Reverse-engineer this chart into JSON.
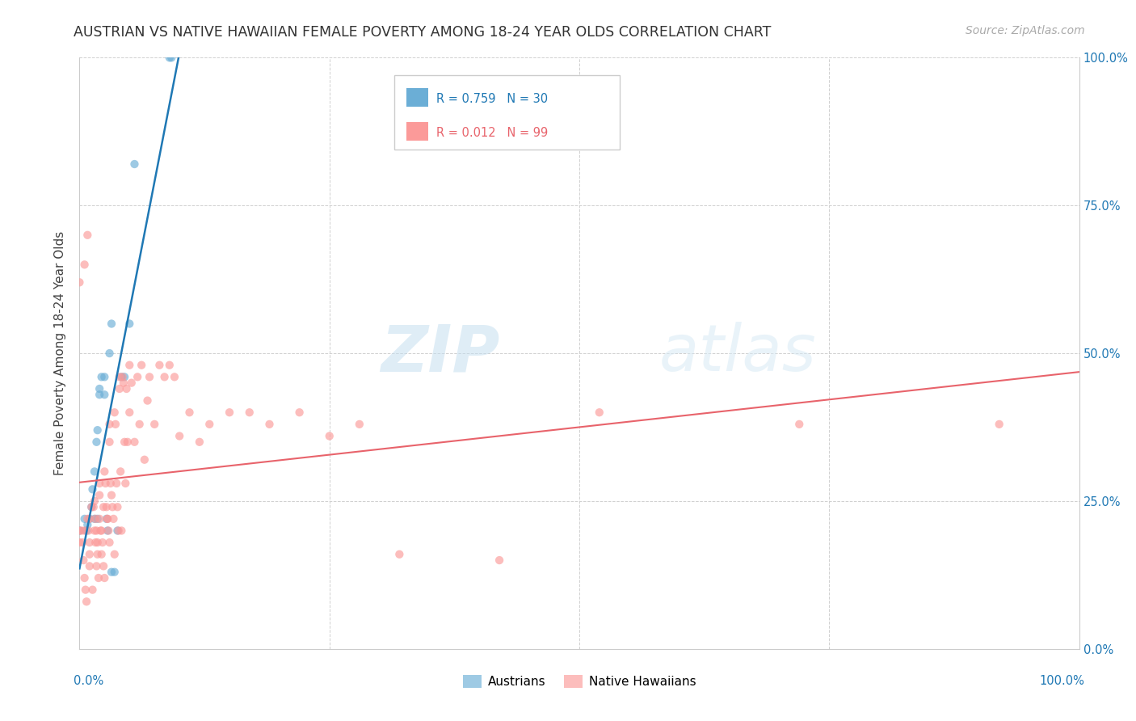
{
  "title": "AUSTRIAN VS NATIVE HAWAIIAN FEMALE POVERTY AMONG 18-24 YEAR OLDS CORRELATION CHART",
  "source": "Source: ZipAtlas.com",
  "ylabel": "Female Poverty Among 18-24 Year Olds",
  "watermark_zip": "ZIP",
  "watermark_atlas": "atlas",
  "austrians_x": [
    0.0,
    0.005,
    0.007,
    0.008,
    0.01,
    0.012,
    0.013,
    0.015,
    0.015,
    0.017,
    0.018,
    0.018,
    0.02,
    0.02,
    0.022,
    0.025,
    0.025,
    0.027,
    0.028,
    0.03,
    0.032,
    0.032,
    0.035,
    0.038,
    0.042,
    0.045,
    0.05,
    0.055,
    0.09,
    0.092
  ],
  "austrians_y": [
    0.2,
    0.22,
    0.2,
    0.21,
    0.22,
    0.24,
    0.27,
    0.3,
    0.22,
    0.35,
    0.37,
    0.22,
    0.43,
    0.44,
    0.46,
    0.43,
    0.46,
    0.22,
    0.2,
    0.5,
    0.55,
    0.13,
    0.13,
    0.2,
    0.46,
    0.46,
    0.55,
    0.82,
    1.0,
    1.0
  ],
  "hawaiians_x": [
    0.0,
    0.0,
    0.0,
    0.002,
    0.003,
    0.004,
    0.005,
    0.005,
    0.005,
    0.006,
    0.007,
    0.008,
    0.008,
    0.009,
    0.01,
    0.01,
    0.01,
    0.01,
    0.012,
    0.013,
    0.014,
    0.015,
    0.015,
    0.016,
    0.016,
    0.017,
    0.017,
    0.018,
    0.018,
    0.019,
    0.02,
    0.02,
    0.02,
    0.021,
    0.022,
    0.022,
    0.023,
    0.024,
    0.024,
    0.025,
    0.025,
    0.026,
    0.027,
    0.028,
    0.028,
    0.029,
    0.03,
    0.03,
    0.03,
    0.031,
    0.032,
    0.033,
    0.034,
    0.035,
    0.035,
    0.036,
    0.037,
    0.038,
    0.039,
    0.04,
    0.04,
    0.041,
    0.042,
    0.043,
    0.044,
    0.045,
    0.046,
    0.047,
    0.048,
    0.05,
    0.05,
    0.052,
    0.055,
    0.058,
    0.06,
    0.062,
    0.065,
    0.068,
    0.07,
    0.075,
    0.08,
    0.085,
    0.09,
    0.095,
    0.1,
    0.11,
    0.12,
    0.13,
    0.15,
    0.17,
    0.19,
    0.22,
    0.25,
    0.28,
    0.32,
    0.42,
    0.52,
    0.72,
    0.92
  ],
  "hawaiians_y": [
    0.2,
    0.62,
    0.18,
    0.2,
    0.18,
    0.15,
    0.2,
    0.12,
    0.65,
    0.1,
    0.08,
    0.7,
    0.22,
    0.2,
    0.18,
    0.16,
    0.22,
    0.14,
    0.24,
    0.1,
    0.24,
    0.2,
    0.25,
    0.22,
    0.18,
    0.2,
    0.14,
    0.18,
    0.16,
    0.12,
    0.26,
    0.28,
    0.22,
    0.2,
    0.16,
    0.2,
    0.18,
    0.14,
    0.24,
    0.12,
    0.3,
    0.28,
    0.24,
    0.22,
    0.22,
    0.2,
    0.38,
    0.35,
    0.18,
    0.28,
    0.26,
    0.24,
    0.22,
    0.4,
    0.16,
    0.38,
    0.28,
    0.24,
    0.2,
    0.46,
    0.44,
    0.3,
    0.2,
    0.46,
    0.45,
    0.35,
    0.28,
    0.44,
    0.35,
    0.48,
    0.4,
    0.45,
    0.35,
    0.46,
    0.38,
    0.48,
    0.32,
    0.42,
    0.46,
    0.38,
    0.48,
    0.46,
    0.48,
    0.46,
    0.36,
    0.4,
    0.35,
    0.38,
    0.4,
    0.4,
    0.38,
    0.4,
    0.36,
    0.38,
    0.16,
    0.15,
    0.4,
    0.38,
    0.38
  ],
  "austrian_color": "#6baed6",
  "hawaiian_color": "#fb9a99",
  "austrian_line_color": "#1f78b4",
  "hawaiian_line_color": "#e8636b",
  "R_austrian": 0.759,
  "N_austrian": 30,
  "R_hawaiian": 0.012,
  "N_hawaiian": 99,
  "legend_label_austrian": "Austrians",
  "legend_label_hawaiian": "Native Hawaiians",
  "background_color": "#ffffff",
  "grid_color": "#d0d0d0",
  "xlim": [
    0.0,
    1.0
  ],
  "ylim": [
    0.0,
    1.0
  ],
  "xticks": [
    0.0,
    0.25,
    0.5,
    0.75,
    1.0
  ],
  "yticks": [
    0.0,
    0.25,
    0.5,
    0.75,
    1.0
  ],
  "right_yticklabels": [
    "0.0%",
    "25.0%",
    "50.0%",
    "75.0%",
    "100.0%"
  ],
  "bottom_xleft_label": "0.0%",
  "bottom_xright_label": "100.0%",
  "title_fontsize": 12.5,
  "axis_label_fontsize": 11,
  "tick_fontsize": 10.5,
  "legend_fontsize": 11,
  "source_fontsize": 10,
  "marker_size": 55,
  "alpha": 0.65
}
